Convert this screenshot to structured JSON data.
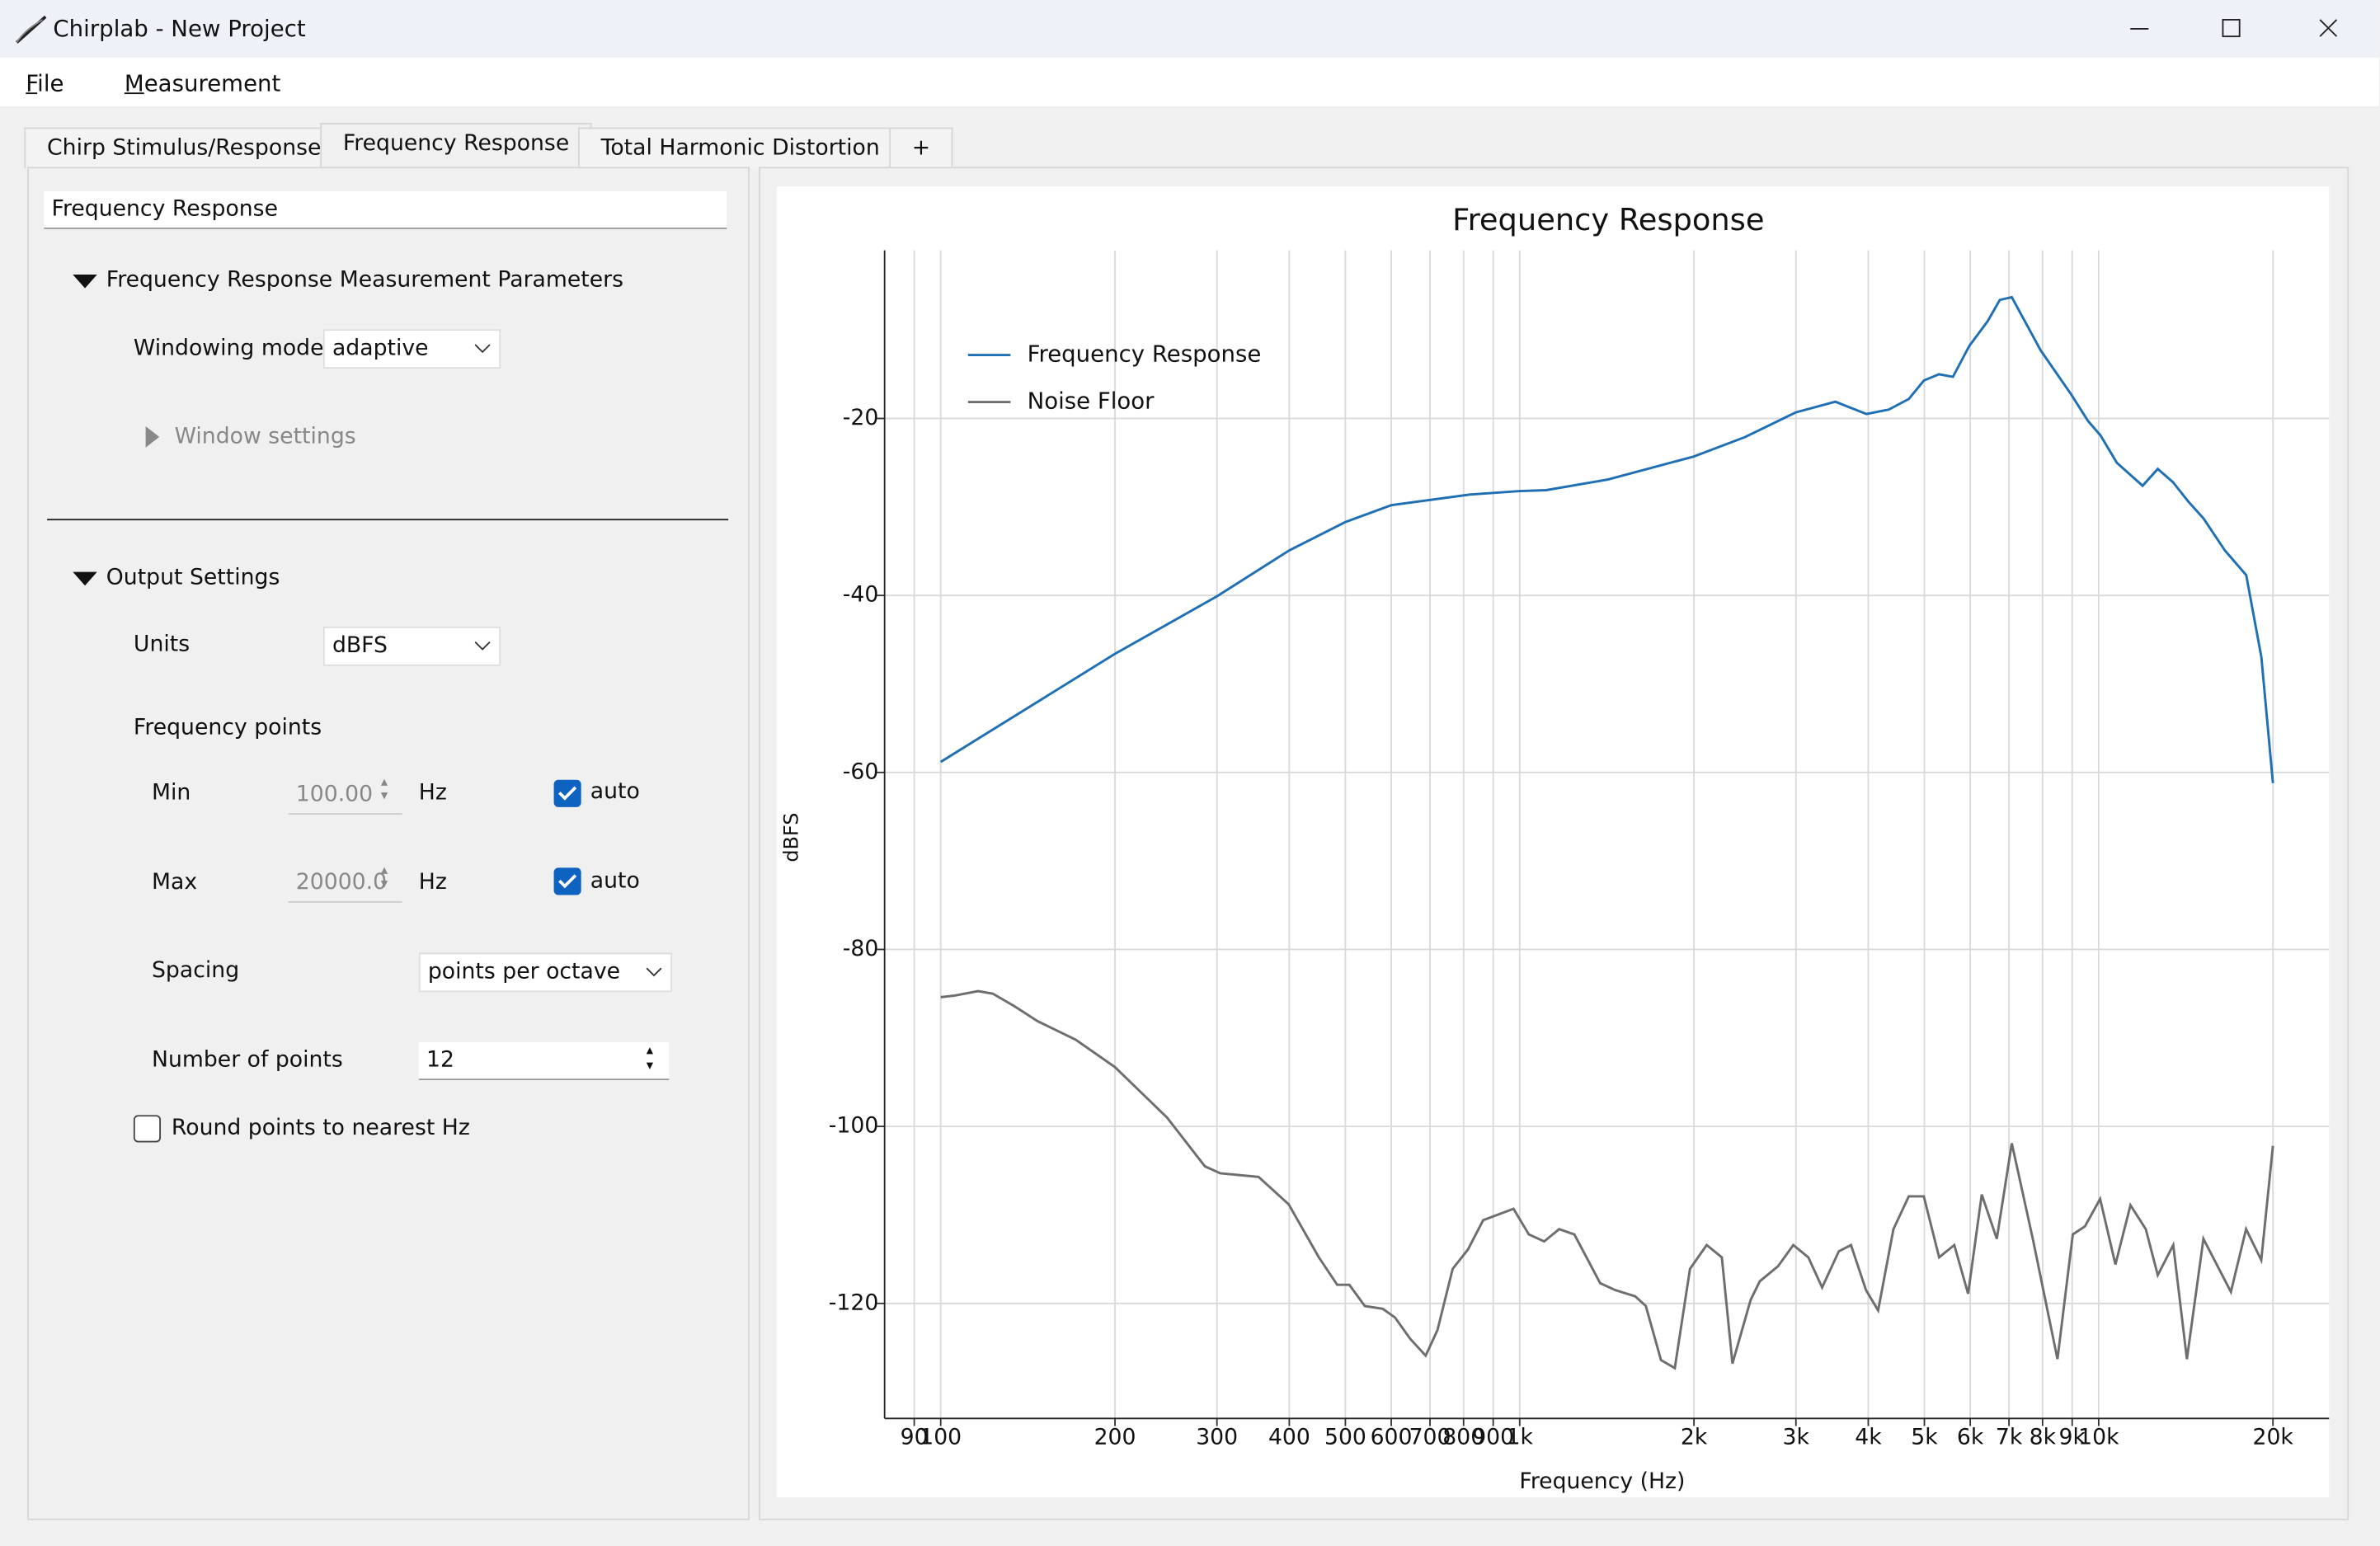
{
  "window": {
    "title": "Chirplab - New Project"
  },
  "menu": [
    "File",
    "Measurement"
  ],
  "tabs": [
    "Chirp Stimulus/Response",
    "Frequency Response",
    "Total Harmonic Distortion",
    "+"
  ],
  "panel": {
    "name_field": "Frequency Response",
    "section1": "Frequency Response Measurement Parameters",
    "windowing_label": "Windowing mode",
    "windowing_value": "adaptive",
    "window_settings": "Window settings",
    "section2": "Output Settings",
    "units_label": "Units",
    "units_value": "dBFS",
    "freq_points": "Frequency points",
    "min_label": "Min",
    "min_value": "100.00",
    "min_unit": "Hz",
    "min_auto": "auto",
    "min_auto_checked": true,
    "max_label": "Max",
    "max_value": "20000.0",
    "max_unit": "Hz",
    "max_auto": "auto",
    "max_auto_checked": true,
    "spacing_label": "Spacing",
    "spacing_value": "points per octave",
    "num_points_label": "Number of points",
    "num_points_value": "12",
    "round_label": "Round points to nearest Hz",
    "round_checked": false
  },
  "chart_data": {
    "type": "line",
    "title": "Frequency Response",
    "xlabel": "Frequency (Hz)",
    "ylabel": "dBFS",
    "xscale": "log",
    "grid": true,
    "legend": "upper left",
    "xlim": [
      80,
      25000
    ],
    "ylim": [
      -133,
      -1
    ],
    "xticks": [
      90,
      100,
      200,
      300,
      400,
      500,
      600,
      700,
      800,
      900,
      {
        "value": 1000,
        "label": "1k"
      },
      {
        "value": 2000,
        "label": "2k"
      },
      {
        "value": 3000,
        "label": "3k"
      },
      {
        "value": 4000,
        "label": "4k"
      },
      {
        "value": 5000,
        "label": "5k"
      },
      {
        "value": 6000,
        "label": "6k"
      },
      {
        "value": 7000,
        "label": "7k"
      },
      {
        "value": 8000,
        "label": "8k"
      },
      {
        "value": 9000,
        "label": "9k"
      },
      {
        "value": 10000,
        "label": "10k"
      },
      {
        "value": 20000,
        "label": "20k"
      }
    ],
    "yticks": [
      -20,
      -40,
      -60,
      -80,
      -100,
      -120
    ],
    "series": [
      {
        "name": "Frequency Response",
        "color": "#1f6fb5",
        "x": [
          100,
          200,
          300,
          400,
          500,
          600,
          820,
          1000,
          1110,
          1420,
          2000,
          2450,
          3000,
          3510,
          3970,
          4340,
          4700,
          4990,
          5300,
          5600,
          5980,
          6430,
          6750,
          7080,
          7940,
          8970,
          9590,
          10070,
          10750,
          11910,
          12650,
          13440,
          14290,
          15180,
          16520,
          17980,
          19100,
          20000
        ],
        "values": [
          -58.8,
          -46.6,
          -40.1,
          -34.9,
          -31.7,
          -29.8,
          -28.6,
          -28.2,
          -28.1,
          -26.9,
          -24.3,
          -22.1,
          -19.3,
          -18.1,
          -19.5,
          -19.0,
          -17.8,
          -15.7,
          -15.0,
          -15.3,
          -11.8,
          -9.0,
          -6.6,
          -6.3,
          -12.3,
          -17.3,
          -20.3,
          -21.9,
          -25.0,
          -27.6,
          -25.7,
          -27.2,
          -29.4,
          -31.3,
          -34.9,
          -37.7,
          -47.0,
          -61.2
        ]
      },
      {
        "name": "Noise Floor",
        "color": "#6e6e6e",
        "x": [
          100,
          106,
          116,
          123,
          134,
          147,
          171,
          200,
          246,
          286,
          304,
          354,
          399,
          450,
          484,
          508,
          540,
          580,
          609,
          647,
          688,
          721,
          766,
          814,
          865,
          976,
          1037,
          1102,
          1170,
          1243,
          1377,
          1463,
          1583,
          1651,
          1754,
          1853,
          1968,
          2103,
          2234,
          2331,
          2506,
          2598,
          2793,
          2968,
          3152,
          3329,
          3558,
          3733,
          3963,
          4160,
          4422,
          4699,
          4989,
          5301,
          5631,
          5948,
          6280,
          6670,
          7080,
          7710,
          8490,
          9020,
          9470,
          10060,
          10690,
          11350,
          12060,
          12650,
          13450,
          14200,
          15170,
          16920,
          17970,
          19090,
          20000
        ],
        "values": [
          -85.4,
          -85.2,
          -84.7,
          -85.0,
          -86.4,
          -88.1,
          -90.2,
          -93.3,
          -99.0,
          -104.5,
          -105.3,
          -105.7,
          -108.8,
          -114.8,
          -117.9,
          -117.9,
          -120.3,
          -120.6,
          -121.6,
          -124.0,
          -125.9,
          -123.0,
          -116.1,
          -113.9,
          -110.6,
          -109.3,
          -112.2,
          -113.0,
          -111.6,
          -112.2,
          -117.7,
          -118.5,
          -119.2,
          -120.3,
          -126.4,
          -127.3,
          -116.1,
          -113.4,
          -114.8,
          -126.8,
          -119.6,
          -117.5,
          -115.8,
          -113.4,
          -114.8,
          -118.2,
          -114.1,
          -113.4,
          -118.5,
          -120.8,
          -111.6,
          -107.9,
          -107.9,
          -114.8,
          -113.4,
          -118.9,
          -107.7,
          -112.7,
          -101.9,
          -113.0,
          -126.3,
          -112.2,
          -111.3,
          -108.2,
          -115.6,
          -108.9,
          -111.6,
          -116.8,
          -113.4,
          -126.3,
          -112.7,
          -118.7,
          -111.6,
          -115.1,
          -102.2
        ]
      }
    ]
  }
}
